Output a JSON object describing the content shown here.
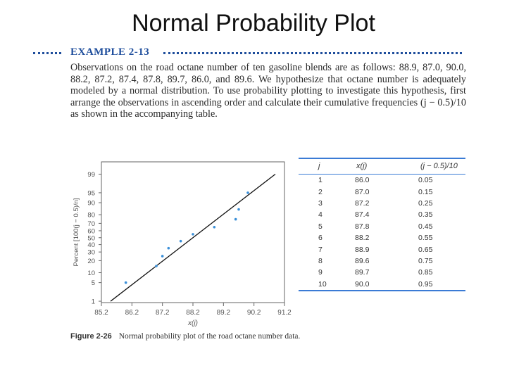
{
  "slide": {
    "title": "Normal Probability Plot"
  },
  "example": {
    "label": "EXAMPLE 2-13",
    "text": "Observations on the road octane number of ten gasoline blends are as follows: 88.9, 87.0, 90.0, 88.2, 87.2, 87.4, 87.8, 89.7, 86.0, and 89.6. We hypothesize that octane number is adequately modeled by a normal distribution. To use probability plotting to investigate this hypothesis, first arrange the observations in ascending order and calculate their cumulative frequencies (j − 0.5)/10 as shown in the accompanying table."
  },
  "table": {
    "headers": [
      "j",
      "x(j)",
      "(j − 0.5)/10"
    ],
    "rows": [
      [
        "1",
        "86.0",
        "0.05"
      ],
      [
        "2",
        "87.0",
        "0.15"
      ],
      [
        "3",
        "87.2",
        "0.25"
      ],
      [
        "4",
        "87.4",
        "0.35"
      ],
      [
        "5",
        "87.8",
        "0.45"
      ],
      [
        "6",
        "88.2",
        "0.55"
      ],
      [
        "7",
        "88.9",
        "0.65"
      ],
      [
        "8",
        "89.6",
        "0.75"
      ],
      [
        "9",
        "89.7",
        "0.85"
      ],
      [
        "10",
        "90.0",
        "0.95"
      ]
    ]
  },
  "figure": {
    "number": "Figure 2-26",
    "caption": "Normal probability plot of the road octane number data."
  },
  "chart_data": {
    "type": "scatter",
    "xlabel": "x(j)",
    "ylabel": "Percent [100(j − 0.5)/n]",
    "xlim": [
      85.2,
      91.2
    ],
    "ylim": [
      1,
      99
    ],
    "yscale": "normal-probability",
    "x_ticks": [
      85.2,
      86.2,
      87.2,
      88.2,
      89.2,
      90.2,
      91.2
    ],
    "x_tick_labels": [
      "85.2",
      "86.2",
      "87.2",
      "88.2",
      "89.2",
      "90.2",
      "91.2"
    ],
    "y_ticks": [
      1,
      5,
      10,
      20,
      30,
      40,
      50,
      60,
      70,
      80,
      90,
      95,
      99
    ],
    "y_tick_labels": [
      "1",
      "5",
      "10",
      "20",
      "30",
      "40",
      "50",
      "60",
      "70",
      "80",
      "90",
      "95",
      "99"
    ],
    "grid": false,
    "points": [
      {
        "x": 86.0,
        "y": 5
      },
      {
        "x": 87.0,
        "y": 15
      },
      {
        "x": 87.2,
        "y": 25
      },
      {
        "x": 87.4,
        "y": 35
      },
      {
        "x": 87.8,
        "y": 45
      },
      {
        "x": 88.2,
        "y": 55
      },
      {
        "x": 88.9,
        "y": 65
      },
      {
        "x": 89.6,
        "y": 75
      },
      {
        "x": 89.7,
        "y": 85
      },
      {
        "x": 90.0,
        "y": 95
      }
    ],
    "fit_line": {
      "x": [
        85.5,
        90.9
      ],
      "y": [
        1,
        99
      ]
    },
    "colors": {
      "points": "#3a8fd8",
      "line": "#111111",
      "axes": "#666666"
    }
  }
}
